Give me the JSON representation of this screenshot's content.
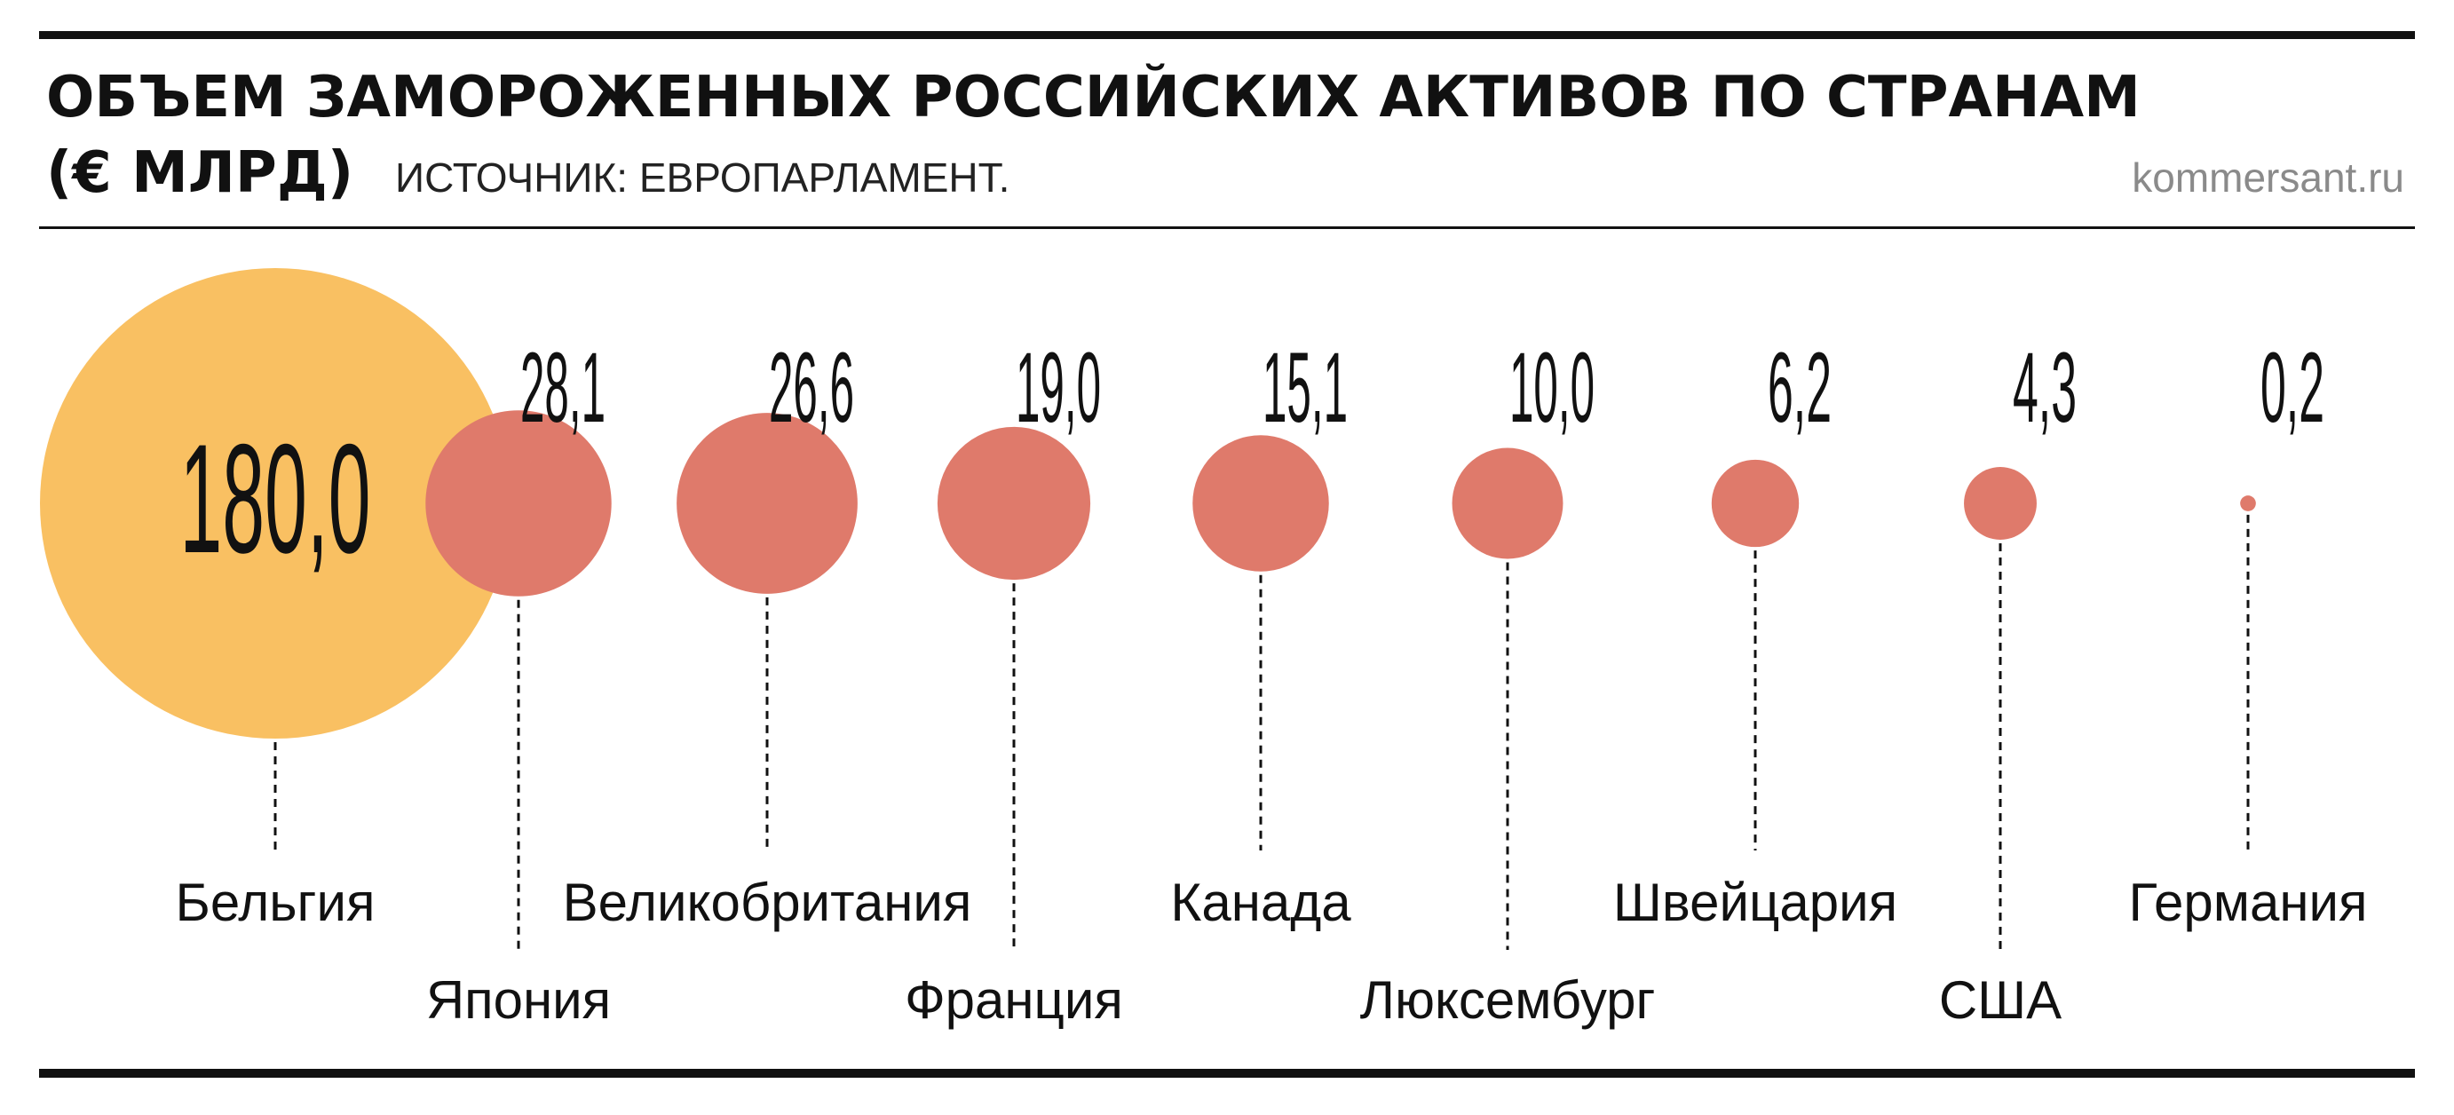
{
  "header": {
    "title": "ОБЪЕМ ЗАМОРОЖЕННЫХ РОССИЙСКИХ АКТИВОВ ПО СТРАНАМ",
    "unit": "(€ МЛРД)",
    "source": "ИСТОЧНИК: ЕВРОПАРЛАМЕНТ.",
    "brand": "kommersant.ru"
  },
  "colors": {
    "highlight": "#F9C062",
    "bubble": "#DF7A6B",
    "text": "#111111",
    "brand": "#8A8A8A"
  },
  "chart_data": {
    "type": "bubble",
    "title": "ОБЪЕМ ЗАМОРОЖЕННЫХ РОССИЙСКИХ АКТИВОВ ПО СТРАНАМ",
    "unit": "€ млрд",
    "categories": [
      "Бельгия",
      "Япония",
      "Великобритания",
      "Франция",
      "Канада",
      "Люксембург",
      "Швейцария",
      "США",
      "Германия"
    ],
    "value_labels": [
      "180,0",
      "28,1",
      "26,6",
      "19,0",
      "15,1",
      "10,0",
      "6,2",
      "4,3",
      "0,2"
    ],
    "values": [
      180.0,
      28.1,
      26.6,
      19.0,
      15.1,
      10.0,
      6.2,
      4.3,
      0.2
    ],
    "highlight_index": 0,
    "grid": false,
    "legend": false
  }
}
